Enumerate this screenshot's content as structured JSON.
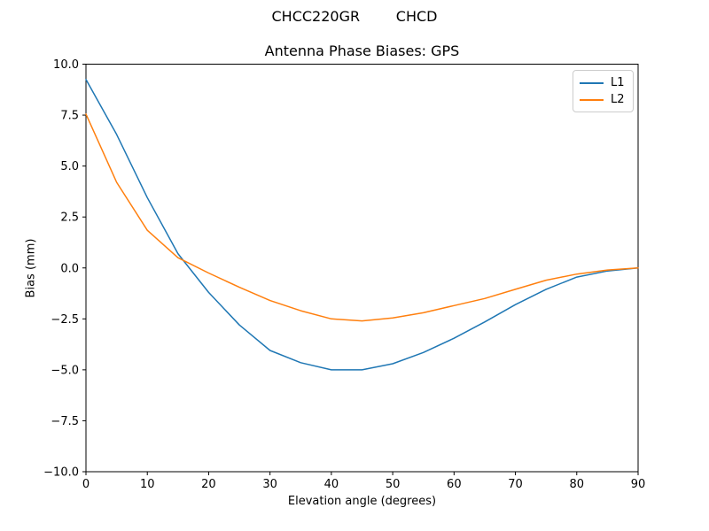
{
  "figure": {
    "suptitle": "CHCC220GR        CHCD"
  },
  "chart_data": {
    "type": "line",
    "title": "Antenna Phase Biases: GPS",
    "xlabel": "Elevation angle (degrees)",
    "ylabel": "Bias (mm)",
    "xlim": [
      0,
      90
    ],
    "ylim": [
      -10,
      10
    ],
    "grid": false,
    "legend_position": "upper right",
    "x": [
      0,
      5,
      10,
      15,
      20,
      25,
      30,
      35,
      40,
      45,
      50,
      55,
      60,
      65,
      70,
      75,
      80,
      85,
      90
    ],
    "series": [
      {
        "name": "L1",
        "color": "#1f77b4",
        "values": [
          9.25,
          6.55,
          3.45,
          0.7,
          -1.2,
          -2.8,
          -4.05,
          -4.65,
          -5.0,
          -5.0,
          -4.7,
          -4.15,
          -3.45,
          -2.65,
          -1.8,
          -1.05,
          -0.45,
          -0.15,
          0.0
        ]
      },
      {
        "name": "L2",
        "color": "#ff7f0e",
        "values": [
          7.55,
          4.2,
          1.85,
          0.5,
          -0.25,
          -0.95,
          -1.6,
          -2.1,
          -2.5,
          -2.6,
          -2.45,
          -2.2,
          -1.85,
          -1.5,
          -1.05,
          -0.6,
          -0.3,
          -0.1,
          0.0
        ]
      }
    ],
    "x_ticks": [
      {
        "value": 0,
        "label": "0"
      },
      {
        "value": 10,
        "label": "10"
      },
      {
        "value": 20,
        "label": "20"
      },
      {
        "value": 30,
        "label": "30"
      },
      {
        "value": 40,
        "label": "40"
      },
      {
        "value": 50,
        "label": "50"
      },
      {
        "value": 60,
        "label": "60"
      },
      {
        "value": 70,
        "label": "70"
      },
      {
        "value": 80,
        "label": "80"
      },
      {
        "value": 90,
        "label": "90"
      }
    ],
    "y_ticks": [
      {
        "value": 10,
        "label": "10.0"
      },
      {
        "value": 7.5,
        "label": "7.5"
      },
      {
        "value": 5,
        "label": "5.0"
      },
      {
        "value": 2.5,
        "label": "2.5"
      },
      {
        "value": 0,
        "label": "0.0"
      },
      {
        "value": -2.5,
        "label": "−2.5"
      },
      {
        "value": -5,
        "label": "−5.0"
      },
      {
        "value": -7.5,
        "label": "−7.5"
      },
      {
        "value": -10,
        "label": "−10.0"
      }
    ]
  }
}
